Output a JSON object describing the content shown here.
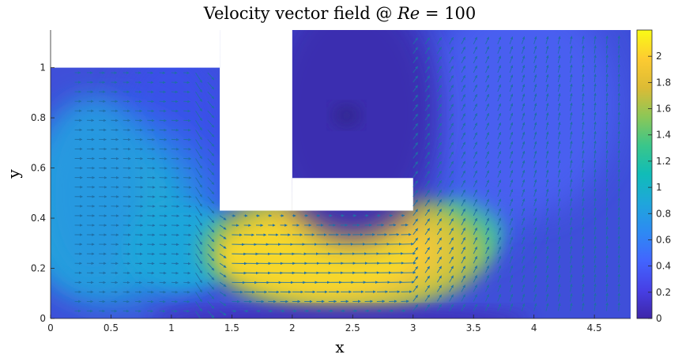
{
  "chart_data": {
    "type": "quiver-heatmap",
    "title_parts": {
      "prefix": "Velocity vector field @ ",
      "var": "Re",
      "suffix": " = 100"
    },
    "xlabel": "x",
    "ylabel": "y",
    "xlim": [
      0,
      4.8
    ],
    "ylim": [
      0,
      1.15
    ],
    "xticks": [
      0,
      0.5,
      1,
      1.5,
      2,
      2.5,
      3,
      3.5,
      4,
      4.5
    ],
    "xtick_labels": [
      "0",
      "0.5",
      "1",
      "1.5",
      "2",
      "2.5",
      "3",
      "3.5",
      "4",
      "4.5"
    ],
    "yticks": [
      0,
      0.2,
      0.4,
      0.6,
      0.8,
      1
    ],
    "ytick_labels": [
      "0",
      "0.2",
      "0.4",
      "0.6",
      "0.8",
      "1"
    ],
    "colorbar": {
      "lim": [
        0,
        2.2
      ],
      "ticks": [
        0,
        0.2,
        0.4,
        0.6,
        0.8,
        1,
        1.2,
        1.4,
        1.6,
        1.8,
        2
      ],
      "tick_labels": [
        "0",
        "0.2",
        "0.4",
        "0.6",
        "0.8",
        "1",
        "1.2",
        "1.4",
        "1.6",
        "1.8",
        "2"
      ],
      "colormap": "parula"
    },
    "solid_regions": [
      {
        "x": [
          0,
          1.4
        ],
        "y": [
          1,
          1.15
        ]
      },
      {
        "x": [
          1.4,
          2.0
        ],
        "y": [
          0.43,
          1.15
        ]
      },
      {
        "x": [
          2.0,
          3.0
        ],
        "y": [
          0.43,
          0.56
        ]
      }
    ],
    "flow_regions": [
      {
        "name": "inlet",
        "x": [
          0,
          1.4
        ],
        "y": [
          0,
          1
        ],
        "speed": 0.9
      },
      {
        "name": "channel",
        "x": [
          1.35,
          3.1
        ],
        "y": [
          0.06,
          0.43
        ],
        "speed": 1.9
      },
      {
        "name": "outlet-rise",
        "x": [
          3.0,
          4.8
        ],
        "y": [
          0,
          1.15
        ],
        "speed": 0.5
      },
      {
        "name": "recirculation",
        "x": [
          2.0,
          3.0
        ],
        "y": [
          0.56,
          1.15
        ],
        "speed": 0.1
      }
    ],
    "arrow_color": "#1f6fa6"
  }
}
